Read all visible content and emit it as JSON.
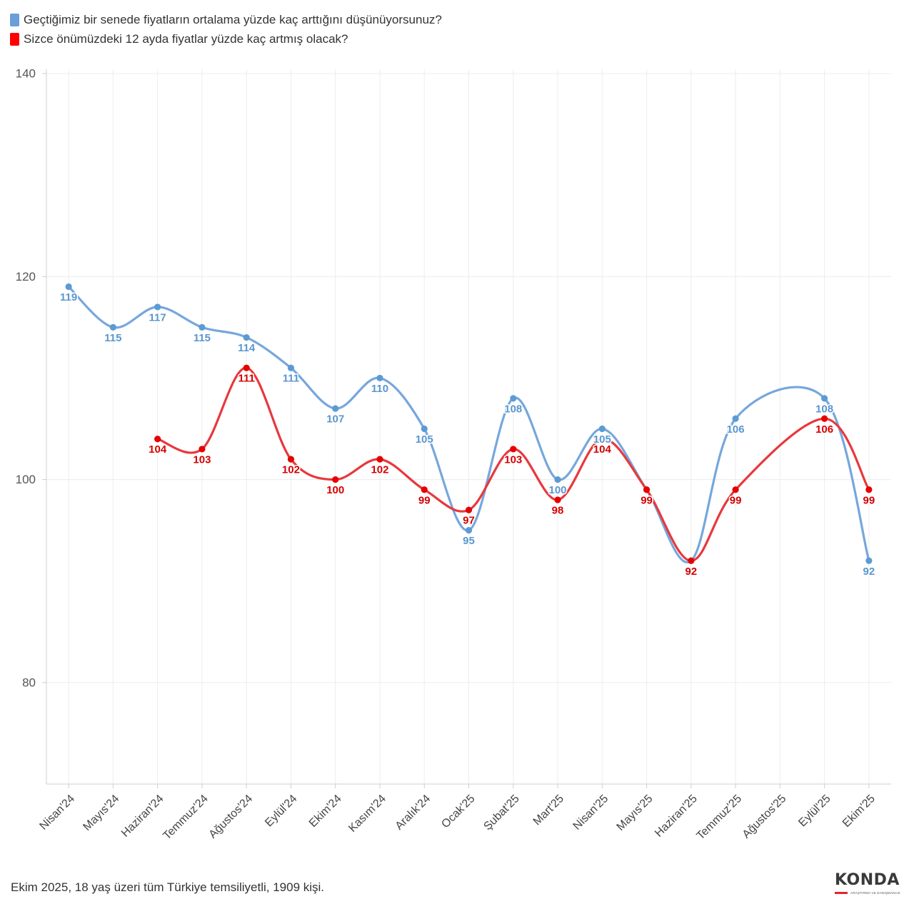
{
  "chart_data": {
    "type": "line",
    "title": "",
    "xlabel": "",
    "ylabel": "",
    "ylim": [
      70,
      140
    ],
    "yticks": [
      80,
      100,
      120,
      140
    ],
    "grid": true,
    "legend_position": "top-left",
    "categories": [
      "Nisan'24",
      "Mayıs'24",
      "Haziran'24",
      "Temmuz'24",
      "Ağustos'24",
      "Eylül'24",
      "Ekim'24",
      "Kasım'24",
      "Aralık'24",
      "Ocak'25",
      "Şubat'25",
      "Mart'25",
      "Nisan'25",
      "Mayıs'25",
      "Haziran'25",
      "Temmuz'25",
      "Ağustos'25",
      "Eylül'25",
      "Ekim'25"
    ],
    "series": [
      {
        "name": "Geçtiğimiz bir senede fiyatların ortalama yüzde kaç arttığını düşünüyorsunuz?",
        "legend_color": "#6A9FD9",
        "color": "#76A7DC",
        "point_color": "#5B9BD5",
        "label_color": "#5A96CF",
        "values": [
          119,
          115,
          117,
          115,
          114,
          111,
          107,
          110,
          105,
          95,
          108,
          100,
          105,
          99,
          92,
          106,
          null,
          108,
          92
        ]
      },
      {
        "name": "Sizce önümüzdeki 12 ayda fiyatlar yüzde kaç artmış olacak?",
        "legend_color": "#FF0000",
        "color": "#E8383D",
        "point_color": "#E60000",
        "label_color": "#D40000",
        "values": [
          null,
          null,
          104,
          103,
          111,
          102,
          100,
          102,
          99,
          97,
          103,
          98,
          104,
          99,
          92,
          99,
          null,
          106,
          99
        ]
      }
    ]
  },
  "footer": {
    "note": "Ekim 2025, 18 yaş üzeri tüm Türkiye temsiliyetli, 1909 kişi."
  },
  "logo": {
    "text": "KONDA",
    "tagline": "ARAŞTIRMA VE DANIŞMANLIK"
  }
}
